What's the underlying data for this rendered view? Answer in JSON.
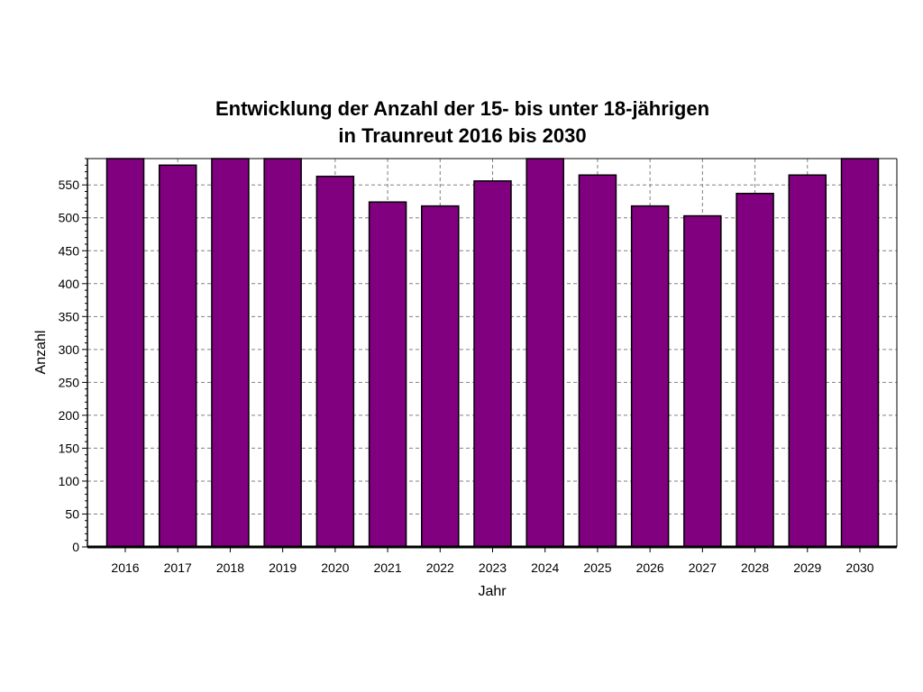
{
  "chart_data": {
    "type": "bar",
    "title": "Entwicklung der Anzahl der 15- bis unter 18-jährigen",
    "subtitle": "in Traunreut 2016 bis 2030",
    "xlabel": "Jahr",
    "ylabel": "Anzahl",
    "categories": [
      "2016",
      "2017",
      "2018",
      "2019",
      "2020",
      "2021",
      "2022",
      "2023",
      "2024",
      "2025",
      "2026",
      "2027",
      "2028",
      "2029",
      "2030"
    ],
    "values": [
      590,
      580,
      590,
      590,
      563,
      524,
      518,
      556,
      590,
      565,
      518,
      503,
      537,
      565,
      590
    ],
    "ylim": [
      0,
      590
    ],
    "yticks": [
      0,
      50,
      100,
      150,
      200,
      250,
      300,
      350,
      400,
      450,
      500,
      550
    ],
    "grid": true,
    "bar_color": "#800080",
    "bar_edge_color": "#000000"
  }
}
